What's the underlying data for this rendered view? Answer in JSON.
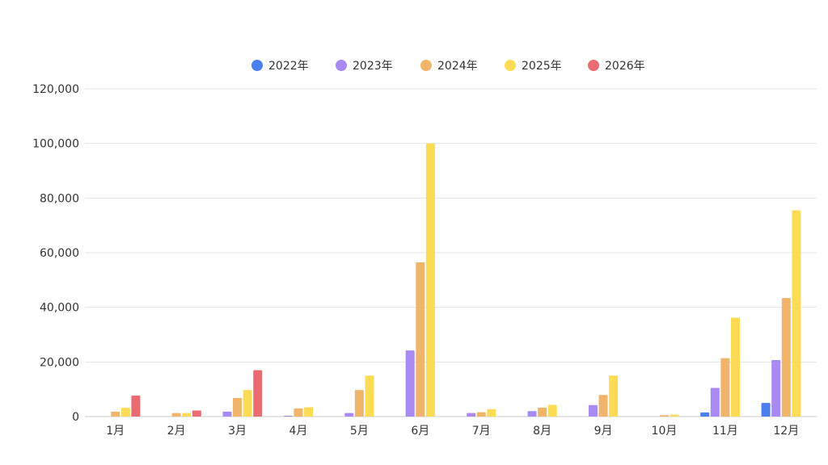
{
  "chart_data": {
    "type": "bar",
    "categories": [
      "1月",
      "2月",
      "3月",
      "4月",
      "5月",
      "6月",
      "7月",
      "8月",
      "9月",
      "10月",
      "11月",
      "12月"
    ],
    "series": [
      {
        "name": "2022年",
        "color": "#4a7fee",
        "values": [
          0,
          0,
          0,
          0,
          0,
          0,
          0,
          0,
          0,
          0,
          1500,
          5000
        ]
      },
      {
        "name": "2023年",
        "color": "#a989f2",
        "values": [
          0,
          0,
          1800,
          300,
          1300,
          24200,
          1300,
          2000,
          4200,
          0,
          10500,
          20700
        ]
      },
      {
        "name": "2024年",
        "color": "#f0b46a",
        "values": [
          1800,
          1300,
          6800,
          3000,
          9700,
          56500,
          1600,
          3300,
          7900,
          500,
          21400,
          43400
        ]
      },
      {
        "name": "2025年",
        "color": "#fcdc55",
        "values": [
          3200,
          1300,
          9700,
          3400,
          15000,
          100000,
          2700,
          4300,
          15000,
          700,
          36200,
          75500
        ]
      },
      {
        "name": "2026年",
        "color": "#ea6c72",
        "values": [
          7700,
          2200,
          17000,
          0,
          0,
          0,
          0,
          0,
          0,
          0,
          0,
          0
        ]
      }
    ],
    "ylim": [
      0,
      120000
    ],
    "yticks": [
      "0",
      "20,000",
      "40,000",
      "60,000",
      "80,000",
      "100,000",
      "120,000"
    ],
    "grid": true,
    "legend_position": "top-center"
  }
}
